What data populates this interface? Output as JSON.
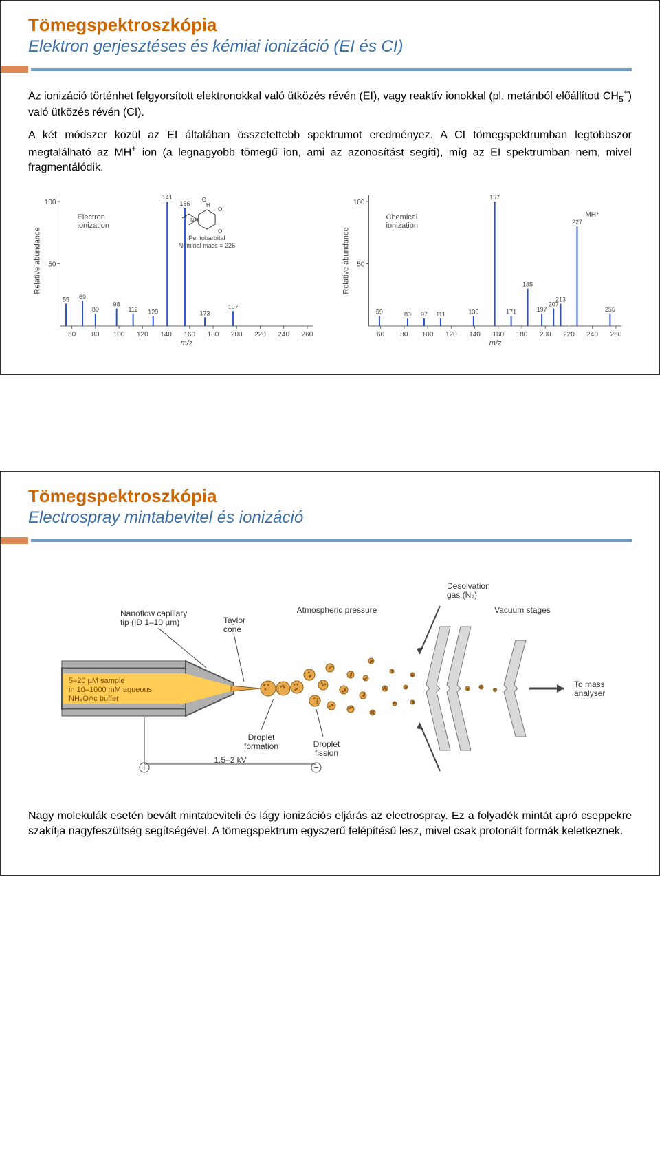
{
  "slide1": {
    "title": "Tömegspektroszkópia",
    "subtitle": "Elektron gerjesztéses és kémiai ionizáció (EI és CI)",
    "para1_pre": "Az ionizáció történhet felgyorsított elektronokkal való ütközés révén (EI), vagy reaktív ionokkal (pl. metánból előállított CH",
    "para1_sub": "5",
    "para1_sup": "+",
    "para1_post": ") való ütközés révén (CI).",
    "para2_pre": "A két módszer közül az EI általában összetettebb spektrumot eredményez. A CI tömegspektrumban legtöbbször megtalálható az MH",
    "para2_sup": "+",
    "para2_post": " ion (a legnagyobb tömegű ion, ami az azonosítást segíti), míg az EI spektrumban nem, mivel fragmentálódik.",
    "chart_left": {
      "type": "mass-spectrum",
      "ylabel": "Relative abundance",
      "xlabel": "m/z",
      "title_lines": [
        "Electron",
        "ionization"
      ],
      "center_lines": [
        "Pentobarbital",
        "Nominal mass = 226"
      ],
      "xmin": 50,
      "xmax": 265,
      "ymin": 0,
      "ymax": 105,
      "yticks": [
        50,
        100
      ],
      "xticks": [
        60,
        80,
        100,
        120,
        140,
        160,
        180,
        200,
        220,
        240,
        260
      ],
      "peak_color": "#2a4fd0",
      "axis_color": "#666666",
      "text_color": "#444444",
      "peaks": [
        {
          "mz": 55,
          "h": 18,
          "label": "55"
        },
        {
          "mz": 69,
          "h": 20,
          "label": "69"
        },
        {
          "mz": 80,
          "h": 10,
          "label": "80"
        },
        {
          "mz": 98,
          "h": 14,
          "label": "98"
        },
        {
          "mz": 112,
          "h": 10,
          "label": "112"
        },
        {
          "mz": 129,
          "h": 8,
          "label": "129"
        },
        {
          "mz": 141,
          "h": 100,
          "label": "141"
        },
        {
          "mz": 156,
          "h": 95,
          "label": "156"
        },
        {
          "mz": 173,
          "h": 7,
          "label": "173"
        },
        {
          "mz": 197,
          "h": 12,
          "label": "197"
        }
      ]
    },
    "chart_right": {
      "type": "mass-spectrum",
      "ylabel": "Relative abundance",
      "xlabel": "m/z",
      "title_lines": [
        "Chemical",
        "ionization"
      ],
      "mh_label": "MH⁺",
      "xmin": 50,
      "xmax": 265,
      "ymin": 0,
      "ymax": 105,
      "yticks": [
        50,
        100
      ],
      "xticks": [
        60,
        80,
        100,
        120,
        140,
        160,
        180,
        200,
        220,
        240,
        260
      ],
      "peak_color": "#2a4fd0",
      "axis_color": "#666666",
      "text_color": "#444444",
      "peaks": [
        {
          "mz": 59,
          "h": 8,
          "label": "59"
        },
        {
          "mz": 83,
          "h": 6,
          "label": "83"
        },
        {
          "mz": 97,
          "h": 6,
          "label": "97"
        },
        {
          "mz": 111,
          "h": 6,
          "label": "111"
        },
        {
          "mz": 139,
          "h": 8,
          "label": "139"
        },
        {
          "mz": 157,
          "h": 100,
          "label": "157"
        },
        {
          "mz": 171,
          "h": 8,
          "label": "171"
        },
        {
          "mz": 185,
          "h": 30,
          "label": "185"
        },
        {
          "mz": 197,
          "h": 10,
          "label": "197"
        },
        {
          "mz": 207,
          "h": 14,
          "label": "207"
        },
        {
          "mz": 213,
          "h": 18,
          "label": "213"
        },
        {
          "mz": 227,
          "h": 80,
          "label": "227"
        },
        {
          "mz": 255,
          "h": 10,
          "label": "255"
        }
      ]
    }
  },
  "slide2": {
    "title": "Tömegspektroszkópia",
    "subtitle": "Electrospray mintabevitel és ionizáció",
    "diagram": {
      "labels": {
        "cap_tip": "Nanoflow capillary\ntip (ID 1–10 µm)",
        "taylor": "Taylor\ncone",
        "atm": "Atmospheric pressure",
        "desolv": "Desolvation\ngas (N₂)",
        "vac": "Vacuum stages",
        "sample": "5–20 µM sample\nin 10–1000 mM aqueous\nNH₄OAc buffer",
        "drop_form": "Droplet\nformation",
        "drop_fiss": "Droplet\nfission",
        "to_ms": "To mass\nanalyser",
        "voltage": "1.5–2 kV"
      },
      "colors": {
        "capillary_fill": "#b0b0b0",
        "capillary_edge": "#555555",
        "sample_fill": "#ffcc55",
        "droplet_fill": "#e8a94a",
        "droplet_stroke": "#8a5a1a",
        "background": "#ffffff",
        "plate_fill": "#d9d9d9",
        "plate_stroke": "#777777",
        "arrow_color": "#444444",
        "text_color": "#333333"
      }
    },
    "body": "Nagy molekulák esetén bevált mintabeviteli és lágy ionizációs eljárás az electrospray. Ez a folyadék mintát apró cseppekre szakítja nagyfeszültség segítségével. A tömegspektrum egyszerű felépítésű lesz, mivel csak protonált formák keletkeznek."
  }
}
